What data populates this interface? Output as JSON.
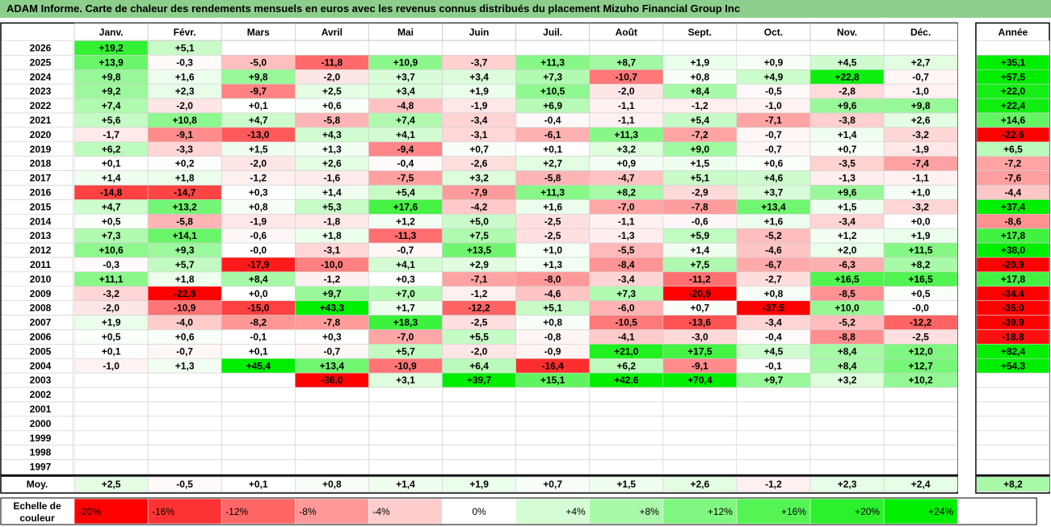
{
  "title": "ADAM Informe. Carte de chaleur des rendements mensuels en euros avec les revenus connus distribués du placement Mizuho Financial Group Inc",
  "colors": {
    "header_bg": "#8ccf8c",
    "negative_max": "#ff0000",
    "positive_max": "#00ee00",
    "neutral": "#ffffff"
  },
  "chart_data": {
    "type": "heatmap",
    "months": [
      "Janv.",
      "Févr.",
      "Mars",
      "Avril",
      "Mai",
      "Juin",
      "Juil.",
      "Août",
      "Sept.",
      "Oct.",
      "Nov.",
      "Déc."
    ],
    "year_column_label": "Année",
    "years": [
      "2026",
      "2025",
      "2024",
      "2023",
      "2022",
      "2021",
      "2020",
      "2019",
      "2018",
      "2017",
      "2016",
      "2015",
      "2014",
      "2013",
      "2012",
      "2011",
      "2010",
      "2009",
      "2008",
      "2007",
      "2006",
      "2005",
      "2004",
      "2003",
      "2002",
      "2001",
      "2000",
      "1999",
      "1998",
      "1997"
    ],
    "values": [
      [
        "+19,2",
        "+5,1",
        "",
        "",
        "",
        "",
        "",
        "",
        "",
        "",
        "",
        ""
      ],
      [
        "+13,9",
        "-0,3",
        "-5,0",
        "-11,8",
        "+10,9",
        "-3,7",
        "+11,3",
        "+8,7",
        "+1,9",
        "+0,9",
        "+4,5",
        "+2,7"
      ],
      [
        "+9,8",
        "+1,6",
        "+9,8",
        "-2,0",
        "+3,7",
        "+3,4",
        "+7,3",
        "-10,7",
        "+0,8",
        "+4,9",
        "+22,8",
        "-0,7"
      ],
      [
        "+9,2",
        "+2,3",
        "-9,7",
        "+2,5",
        "+3,4",
        "+1,9",
        "+10,5",
        "-2,0",
        "+8,4",
        "-0,5",
        "-2,8",
        "-1,0"
      ],
      [
        "+7,4",
        "-2,0",
        "+0,1",
        "+0,6",
        "-4,8",
        "-1,9",
        "+6,9",
        "-1,1",
        "-1,2",
        "-1,0",
        "+9,6",
        "+9,8"
      ],
      [
        "+5,6",
        "+10,8",
        "+4,7",
        "-5,8",
        "+7,4",
        "-3,4",
        "-0,4",
        "-1,1",
        "+5,4",
        "-7,1",
        "-3,8",
        "+2,6"
      ],
      [
        "-1,7",
        "-9,1",
        "-13,0",
        "+4,3",
        "+4,1",
        "-3,1",
        "-6,1",
        "+11,3",
        "-7,2",
        "-0,7",
        "+1,4",
        "-3,2"
      ],
      [
        "+6,2",
        "-3,3",
        "+1,5",
        "+1,3",
        "-9,4",
        "+0,7",
        "+0,1",
        "+3,2",
        "+9,0",
        "-0,7",
        "+0,7",
        "-1,9"
      ],
      [
        "+0,1",
        "+0,2",
        "-2,0",
        "+2,6",
        "-0,4",
        "-2,6",
        "+2,7",
        "+0,9",
        "+1,5",
        "+0,6",
        "-3,5",
        "-7,4"
      ],
      [
        "+1,4",
        "+1,8",
        "-1,2",
        "-1,6",
        "-7,5",
        "+3,2",
        "-5,8",
        "-4,7",
        "+5,1",
        "+4,6",
        "-1,3",
        "-1,1"
      ],
      [
        "-14,8",
        "-14,7",
        "+0,3",
        "+1,4",
        "+5,4",
        "-7,9",
        "+11,3",
        "+8,2",
        "-2,9",
        "+3,7",
        "+9,6",
        "+1,0"
      ],
      [
        "+4,7",
        "+13,2",
        "+0,8",
        "+5,3",
        "+17,6",
        "-4,2",
        "+1,6",
        "-7,0",
        "-7,8",
        "+13,4",
        "+1,5",
        "-3,2"
      ],
      [
        "+0,5",
        "-5,8",
        "-1,9",
        "-1,8",
        "+1,2",
        "+5,0",
        "-2,5",
        "-1,1",
        "-0,6",
        "+1,6",
        "-3,4",
        "+0,0"
      ],
      [
        "+7,3",
        "+14,1",
        "-0,6",
        "+1,8",
        "-11,3",
        "+7,5",
        "-2,5",
        "-1,3",
        "+5,9",
        "-5,2",
        "+1,2",
        "+1,9"
      ],
      [
        "+10,6",
        "+9,3",
        "-0,0",
        "-3,1",
        "-0,7",
        "+13,5",
        "+1,0",
        "-5,5",
        "+1,4",
        "-4,6",
        "+2,0",
        "+11,5"
      ],
      [
        "-0,3",
        "+5,7",
        "-17,9",
        "-10,0",
        "+4,1",
        "+2,9",
        "+1,3",
        "-8,4",
        "+7,5",
        "-6,7",
        "-6,3",
        "+8,2"
      ],
      [
        "+11,1",
        "+1,8",
        "+8,4",
        "-1,2",
        "+0,3",
        "-7,1",
        "-8,0",
        "-3,4",
        "-11,2",
        "-2,7",
        "+16,5",
        "+16,5"
      ],
      [
        "-3,2",
        "-22,8",
        "+0,0",
        "+9,7",
        "+7,0",
        "-1,2",
        "-4,6",
        "+7,3",
        "-20,9",
        "+0,8",
        "-8,5",
        "+0,5"
      ],
      [
        "-2,0",
        "-10,9",
        "-15,0",
        "+43,3",
        "+1,7",
        "-12,2",
        "+5,1",
        "-6,0",
        "+0,7",
        "-37,5",
        "+10,0",
        "-0,0"
      ],
      [
        "+1,9",
        "-4,0",
        "-8,2",
        "-7,8",
        "+18,3",
        "-2,5",
        "+0,8",
        "-10,5",
        "-13,6",
        "-3,4",
        "-5,2",
        "-12,2"
      ],
      [
        "+0,5",
        "+0,6",
        "-0,1",
        "+0,3",
        "-7,0",
        "+5,5",
        "-0,8",
        "-4,1",
        "-3,0",
        "-0,4",
        "-8,8",
        "-2,5"
      ],
      [
        "+0,1",
        "-0,7",
        "+0,1",
        "-0,7",
        "+5,7",
        "-2,0",
        "-0,9",
        "+21,0",
        "+17,5",
        "+4,5",
        "+8,4",
        "+12,0"
      ],
      [
        "-1,0",
        "+1,3",
        "+45,4",
        "+13,4",
        "-10,9",
        "+6,4",
        "-16,4",
        "+6,2",
        "-9,1",
        "-0,1",
        "+8,4",
        "+12,7"
      ],
      [
        "",
        "",
        "",
        "-36,0",
        "+3,1",
        "+39,7",
        "+15,1",
        "+42,6",
        "+70,4",
        "+9,7",
        "+3,2",
        "+10,2"
      ],
      [
        "",
        "",
        "",
        "",
        "",
        "",
        "",
        "",
        "",
        "",
        "",
        ""
      ],
      [
        "",
        "",
        "",
        "",
        "",
        "",
        "",
        "",
        "",
        "",
        "",
        ""
      ],
      [
        "",
        "",
        "",
        "",
        "",
        "",
        "",
        "",
        "",
        "",
        "",
        ""
      ],
      [
        "",
        "",
        "",
        "",
        "",
        "",
        "",
        "",
        "",
        "",
        "",
        ""
      ],
      [
        "",
        "",
        "",
        "",
        "",
        "",
        "",
        "",
        "",
        "",
        "",
        ""
      ],
      [
        "",
        "",
        "",
        "",
        "",
        "",
        "",
        "",
        "",
        "",
        "",
        ""
      ]
    ],
    "annual": [
      "",
      "+35,1",
      "+57,5",
      "+22,0",
      "+22,4",
      "+14,6",
      "-22,6",
      "+6,5",
      "-7,2",
      "-7,6",
      "-4,4",
      "+37,4",
      "-8,6",
      "+17,8",
      "+38,0",
      "-20,9",
      "+17,8",
      "-34,4",
      "-35,0",
      "-39,9",
      "-18,8",
      "+82,4",
      "+54,3",
      "",
      "",
      "",
      "",
      "",
      "",
      ""
    ],
    "average": {
      "label": "Moy.",
      "values": [
        "+2,5",
        "-0,5",
        "+0,1",
        "+0,8",
        "+1,4",
        "+1,9",
        "+0,7",
        "+1,5",
        "+2,6",
        "-1,2",
        "+2,3",
        "+2,4"
      ],
      "annual": "+8,2"
    },
    "scale": {
      "label_line1": "Echelle de",
      "label_line2": "couleur",
      "steps": [
        {
          "label": "-20%",
          "value": -20
        },
        {
          "label": "-16%",
          "value": -16
        },
        {
          "label": "-12%",
          "value": -12
        },
        {
          "label": "-8%",
          "value": -8
        },
        {
          "label": "-4%",
          "value": -4
        },
        {
          "label": "0%",
          "value": 0
        },
        {
          "label": "+4%",
          "value": 4
        },
        {
          "label": "+8%",
          "value": 8
        },
        {
          "label": "+12%",
          "value": 12
        },
        {
          "label": "+16%",
          "value": 16
        },
        {
          "label": "+20%",
          "value": 20
        },
        {
          "label": "+24%",
          "value": 24
        }
      ]
    }
  }
}
